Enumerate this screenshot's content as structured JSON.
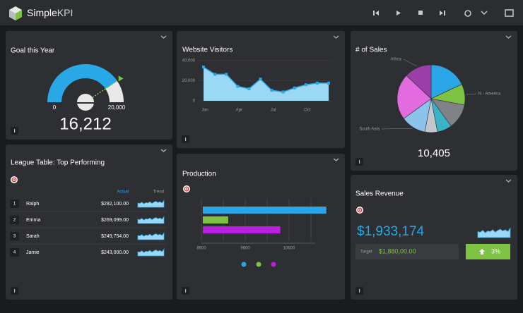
{
  "app": {
    "brand_name": "Simple",
    "brand_suffix": "KPI"
  },
  "goal": {
    "title": "Goal this Year",
    "gauge": {
      "min": 0,
      "max": 20000,
      "max_label": "20,000",
      "value": 16212,
      "value_label": "16,212",
      "color": "#29a8e8",
      "track": "#e8e8e8"
    }
  },
  "visitors": {
    "title": "Website Visitors",
    "chart": {
      "type": "area",
      "categories": [
        "Jan",
        null,
        null,
        "Apr",
        null,
        null,
        "Jul",
        null,
        null,
        "Oct",
        null,
        null
      ],
      "values": [
        33600,
        26400,
        26400,
        14400,
        12000,
        21600,
        10400,
        8800,
        12800,
        16000,
        17600,
        17600
      ],
      "ylim": [
        0,
        40000
      ],
      "yticks": [
        0,
        {
          "value": 20000,
          "label": "20,000"
        },
        {
          "value": 40000,
          "label": "40,000"
        }
      ],
      "color": "#29a8e8",
      "fill": "#9ad8f5",
      "grid": true
    }
  },
  "sales": {
    "title": "# of Sales",
    "total": "10,405",
    "chart": {
      "type": "pie",
      "categories": [
        null,
        "N - America",
        null,
        null,
        null,
        "South Asia",
        null,
        "Africa"
      ],
      "values": [
        18,
        10,
        12,
        7,
        6,
        12,
        22,
        13
      ],
      "colors": [
        "#2aa6e8",
        "#7dc242",
        "#7f8286",
        "#3bb3c7",
        "#c3c6cb",
        "#8cc3ea",
        "#e36be0",
        "#9a3fa8"
      ]
    }
  },
  "league": {
    "title": "League Table: Top Performing",
    "columns": [
      "Actual",
      "Trend"
    ],
    "rows": [
      [
        "1",
        "Ralph",
        "$282,100.00"
      ],
      [
        "2",
        "Emma",
        "$269,099.00"
      ],
      [
        "3",
        "Sarah",
        "$249,754.00"
      ],
      [
        "4",
        "Jamie",
        "$243,000.00"
      ]
    ]
  },
  "production": {
    "title": "Production",
    "chart": {
      "type": "bar",
      "orientation": "horizontal",
      "values": [
        11450,
        9210,
        10400
      ],
      "colors": [
        "#2aa6e8",
        "#7dc242",
        "#b81fe0"
      ],
      "xlim": [
        8600,
        11600
      ],
      "xticks": [
        8600,
        9600,
        10600
      ],
      "xminor": [
        9100,
        10100,
        11100
      ],
      "grid": true
    }
  },
  "revenue": {
    "title": "Sales Revenue",
    "value": "$1,933,174",
    "target_label": "Target",
    "target": "$1,880,00.00",
    "change": "3%"
  }
}
